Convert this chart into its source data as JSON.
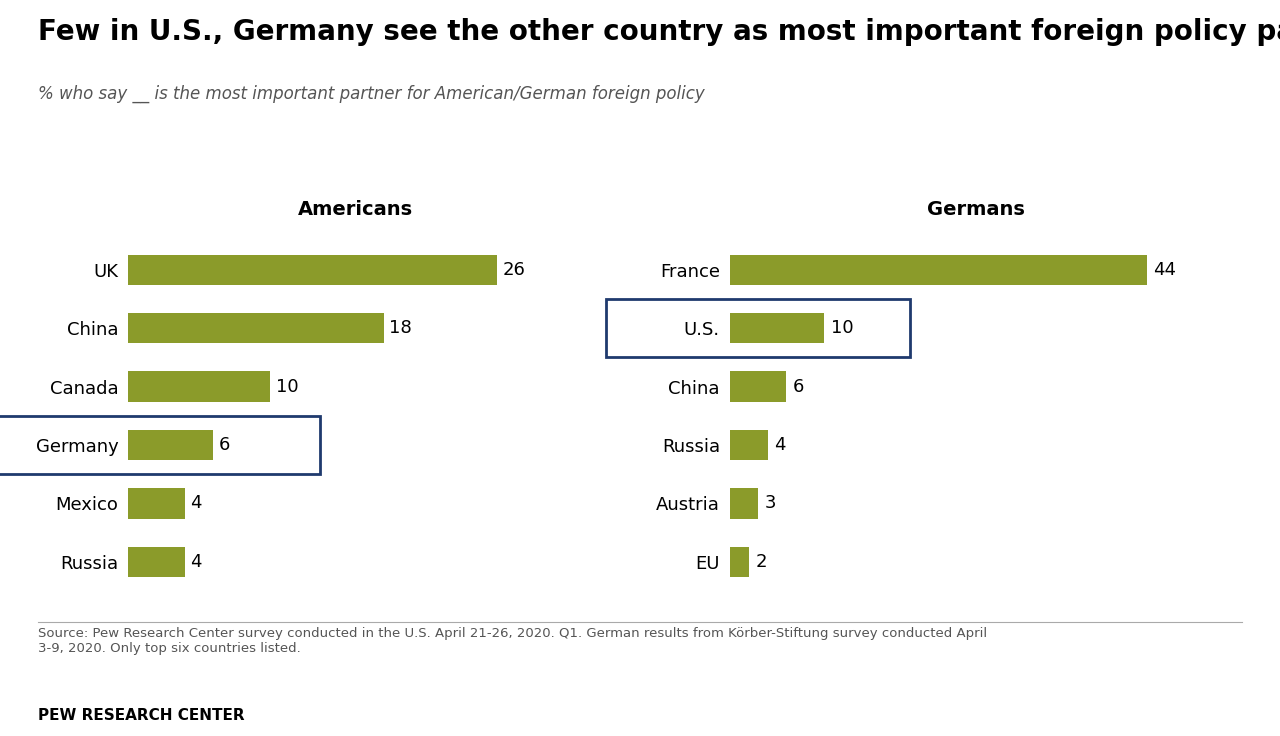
{
  "title": "Few in U.S., Germany see the other country as most important foreign policy partner",
  "subtitle": "% who say __ is the most important partner for American/German foreign policy",
  "americans_label": "Americans",
  "germans_label": "Germans",
  "americans_categories": [
    "UK",
    "China",
    "Canada",
    "Germany",
    "Mexico",
    "Russia"
  ],
  "americans_values": [
    26,
    18,
    10,
    6,
    4,
    4
  ],
  "americans_highlighted": [
    3
  ],
  "germans_categories": [
    "France",
    "U.S.",
    "China",
    "Russia",
    "Austria",
    "EU"
  ],
  "germans_values": [
    44,
    10,
    6,
    4,
    3,
    2
  ],
  "germans_highlighted": [
    1
  ],
  "bar_color": "#8B9B2A",
  "box_color": "#1F3A6E",
  "background_color": "#FFFFFF",
  "title_fontsize": 20,
  "subtitle_fontsize": 12,
  "category_fontsize": 13,
  "value_fontsize": 13,
  "section_label_fontsize": 14,
  "source_text": "Source: Pew Research Center survey conducted in the U.S. April 21-26, 2020. Q1. German results from Körber-Stiftung survey conducted April\n3-9, 2020. Only top six countries listed.",
  "footer_text": "PEW RESEARCH CENTER",
  "xlim_americans": [
    0,
    32
  ],
  "xlim_germans": [
    0,
    52
  ]
}
